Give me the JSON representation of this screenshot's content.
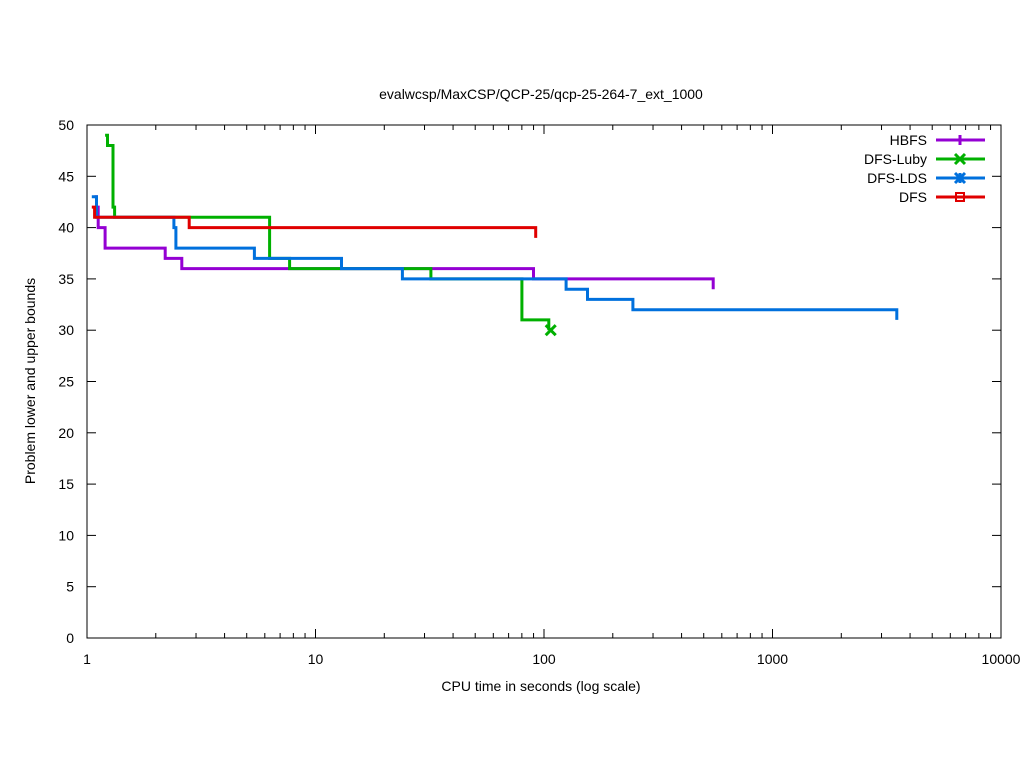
{
  "chart_data": {
    "type": "line",
    "title": "evalwcsp/MaxCSP/QCP-25/qcp-25-264-7_ext_1000",
    "xlabel": "CPU time in seconds (log scale)",
    "ylabel": "Problem lower and upper bounds",
    "xscale": "log",
    "xlim": [
      1,
      10000
    ],
    "ylim": [
      0,
      50
    ],
    "x_ticks": [
      {
        "value": 1,
        "label": "1"
      },
      {
        "value": 10,
        "label": "10"
      },
      {
        "value": 100,
        "label": "100"
      },
      {
        "value": 1000,
        "label": "1000"
      },
      {
        "value": 10000,
        "label": "10000"
      }
    ],
    "y_ticks": [
      {
        "value": 0,
        "label": "0"
      },
      {
        "value": 5,
        "label": "5"
      },
      {
        "value": 10,
        "label": "10"
      },
      {
        "value": 15,
        "label": "15"
      },
      {
        "value": 20,
        "label": "20"
      },
      {
        "value": 25,
        "label": "25"
      },
      {
        "value": 30,
        "label": "30"
      },
      {
        "value": 35,
        "label": "35"
      },
      {
        "value": 40,
        "label": "40"
      },
      {
        "value": 45,
        "label": "45"
      },
      {
        "value": 50,
        "label": "50"
      }
    ],
    "grid": false,
    "legend_position": "top-right",
    "series": [
      {
        "name": "HBFS",
        "color": "#9400d3",
        "marker": "plus",
        "points": [
          [
            1.08,
            43
          ],
          [
            1.1,
            42
          ],
          [
            1.12,
            40
          ],
          [
            1.2,
            38
          ],
          [
            2.2,
            37
          ],
          [
            2.6,
            36
          ],
          [
            90,
            35
          ],
          [
            550,
            35
          ],
          [
            550,
            34
          ]
        ]
      },
      {
        "name": "DFS-Luby",
        "color": "#00b000",
        "marker": "x",
        "points": [
          [
            1.2,
            49
          ],
          [
            1.23,
            48
          ],
          [
            1.3,
            42
          ],
          [
            1.32,
            41
          ],
          [
            6.3,
            37
          ],
          [
            7.7,
            36
          ],
          [
            32,
            35
          ],
          [
            80,
            31
          ],
          [
            105,
            30
          ]
        ],
        "end_marker": [
          107,
          30
        ]
      },
      {
        "name": "DFS-LDS",
        "color": "#0070dd",
        "marker": "star",
        "points": [
          [
            1.05,
            43
          ],
          [
            1.1,
            41
          ],
          [
            2.4,
            40
          ],
          [
            2.45,
            38
          ],
          [
            5.4,
            37
          ],
          [
            13,
            36
          ],
          [
            24,
            35
          ],
          [
            125,
            34
          ],
          [
            155,
            33
          ],
          [
            245,
            32
          ],
          [
            3500,
            32
          ],
          [
            3500,
            31
          ]
        ]
      },
      {
        "name": "DFS",
        "color": "#e00000",
        "marker": "square",
        "points": [
          [
            1.05,
            42
          ],
          [
            1.08,
            41
          ],
          [
            2.8,
            40
          ],
          [
            92,
            40
          ],
          [
            92,
            39
          ]
        ]
      }
    ]
  }
}
